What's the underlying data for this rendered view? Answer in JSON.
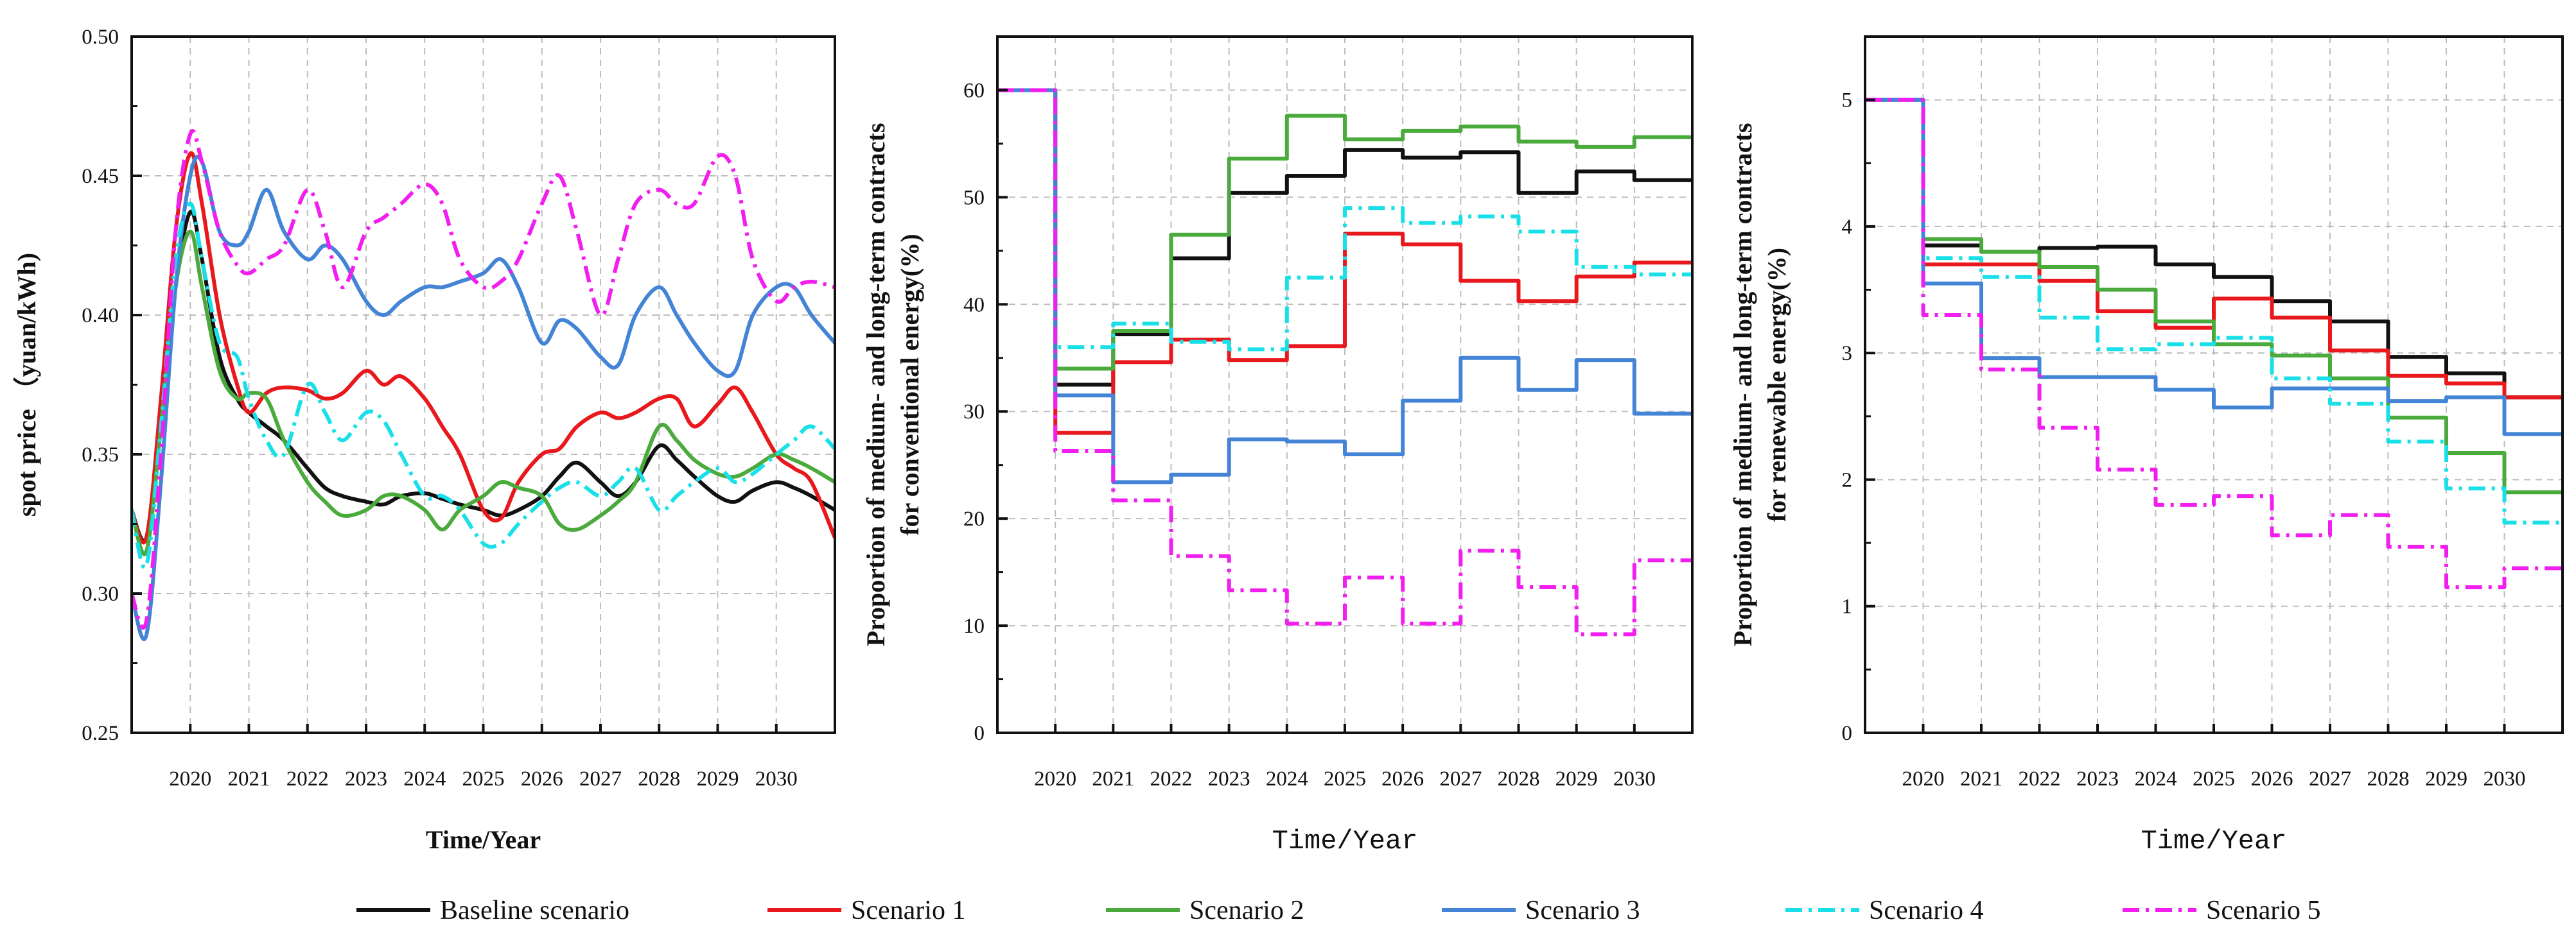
{
  "chart_data": [
    {
      "type": "line",
      "xlabel": "Time/Year",
      "ylabel": "spot price （yuan/kWh)",
      "xlim": [
        2019,
        2031
      ],
      "ylim": [
        0.25,
        0.5
      ],
      "xticks": [
        "2020",
        "2021",
        "2022",
        "2023",
        "2024",
        "2025",
        "2026",
        "2027",
        "2028",
        "2029",
        "2030"
      ],
      "yticks": [
        "0.25",
        "0.30",
        "0.35",
        "0.40",
        "0.45",
        "0.50"
      ],
      "grid": true,
      "series": [
        {
          "name": "Baseline scenario",
          "x": [
            2019.0,
            2019.25,
            2019.5,
            2019.75,
            2020.0,
            2020.2,
            2020.5,
            2020.8,
            2021.0,
            2021.3,
            2021.6,
            2022.0,
            2022.3,
            2022.6,
            2023.0,
            2023.3,
            2023.6,
            2024.0,
            2024.3,
            2024.6,
            2025.0,
            2025.3,
            2025.6,
            2026.0,
            2026.3,
            2026.6,
            2027.0,
            2027.3,
            2027.6,
            2028.0,
            2028.3,
            2028.6,
            2029.0,
            2029.3,
            2029.6,
            2030.0,
            2030.3,
            2030.6,
            2031.0
          ],
          "y": [
            0.33,
            0.32,
            0.36,
            0.41,
            0.437,
            0.42,
            0.385,
            0.37,
            0.365,
            0.36,
            0.355,
            0.345,
            0.338,
            0.335,
            0.333,
            0.332,
            0.335,
            0.336,
            0.334,
            0.332,
            0.33,
            0.328,
            0.33,
            0.335,
            0.342,
            0.347,
            0.34,
            0.335,
            0.34,
            0.353,
            0.348,
            0.342,
            0.335,
            0.333,
            0.337,
            0.34,
            0.338,
            0.335,
            0.33
          ]
        },
        {
          "name": "Scenario 1",
          "x": [
            2019.0,
            2019.25,
            2019.5,
            2019.75,
            2020.0,
            2020.2,
            2020.5,
            2020.8,
            2021.0,
            2021.3,
            2021.6,
            2022.0,
            2022.3,
            2022.6,
            2023.0,
            2023.3,
            2023.6,
            2024.0,
            2024.3,
            2024.6,
            2025.0,
            2025.3,
            2025.6,
            2026.0,
            2026.3,
            2026.6,
            2027.0,
            2027.3,
            2027.6,
            2028.0,
            2028.3,
            2028.6,
            2029.0,
            2029.3,
            2029.6,
            2030.0,
            2030.3,
            2030.6,
            2031.0
          ],
          "y": [
            0.33,
            0.32,
            0.37,
            0.43,
            0.458,
            0.44,
            0.4,
            0.375,
            0.365,
            0.372,
            0.374,
            0.373,
            0.37,
            0.372,
            0.38,
            0.375,
            0.378,
            0.37,
            0.36,
            0.35,
            0.33,
            0.327,
            0.34,
            0.35,
            0.352,
            0.36,
            0.365,
            0.363,
            0.365,
            0.37,
            0.37,
            0.36,
            0.368,
            0.374,
            0.365,
            0.35,
            0.345,
            0.34,
            0.32
          ]
        },
        {
          "name": "Scenario 2",
          "x": [
            2019.0,
            2019.25,
            2019.5,
            2019.75,
            2020.0,
            2020.2,
            2020.5,
            2020.8,
            2021.0,
            2021.3,
            2021.6,
            2022.0,
            2022.3,
            2022.6,
            2023.0,
            2023.3,
            2023.6,
            2024.0,
            2024.3,
            2024.6,
            2025.0,
            2025.3,
            2025.6,
            2026.0,
            2026.3,
            2026.6,
            2027.0,
            2027.3,
            2027.6,
            2028.0,
            2028.3,
            2028.6,
            2029.0,
            2029.3,
            2029.6,
            2030.0,
            2030.3,
            2030.6,
            2031.0
          ],
          "y": [
            0.33,
            0.315,
            0.36,
            0.41,
            0.43,
            0.41,
            0.38,
            0.37,
            0.372,
            0.37,
            0.355,
            0.34,
            0.333,
            0.328,
            0.33,
            0.335,
            0.335,
            0.33,
            0.323,
            0.33,
            0.335,
            0.34,
            0.338,
            0.335,
            0.325,
            0.323,
            0.328,
            0.333,
            0.34,
            0.36,
            0.355,
            0.348,
            0.343,
            0.342,
            0.345,
            0.35,
            0.348,
            0.345,
            0.34
          ]
        },
        {
          "name": "Scenario 3",
          "x": [
            2019.0,
            2019.25,
            2019.5,
            2019.75,
            2020.0,
            2020.2,
            2020.5,
            2020.8,
            2021.0,
            2021.3,
            2021.6,
            2022.0,
            2022.3,
            2022.6,
            2023.0,
            2023.3,
            2023.6,
            2024.0,
            2024.3,
            2024.6,
            2025.0,
            2025.3,
            2025.6,
            2026.0,
            2026.3,
            2026.6,
            2027.0,
            2027.3,
            2027.6,
            2028.0,
            2028.3,
            2028.6,
            2029.0,
            2029.3,
            2029.6,
            2030.0,
            2030.3,
            2030.6,
            2031.0
          ],
          "y": [
            0.3,
            0.285,
            0.34,
            0.41,
            0.45,
            0.455,
            0.43,
            0.425,
            0.43,
            0.445,
            0.43,
            0.42,
            0.425,
            0.42,
            0.405,
            0.4,
            0.405,
            0.41,
            0.41,
            0.412,
            0.415,
            0.42,
            0.41,
            0.39,
            0.398,
            0.395,
            0.385,
            0.382,
            0.4,
            0.41,
            0.4,
            0.39,
            0.38,
            0.38,
            0.4,
            0.41,
            0.41,
            0.4,
            0.39
          ]
        },
        {
          "name": "Scenario 4",
          "x": [
            2019.0,
            2019.25,
            2019.5,
            2019.75,
            2020.0,
            2020.2,
            2020.5,
            2020.8,
            2021.0,
            2021.3,
            2021.6,
            2022.0,
            2022.3,
            2022.6,
            2023.0,
            2023.3,
            2023.6,
            2024.0,
            2024.3,
            2024.6,
            2025.0,
            2025.3,
            2025.6,
            2026.0,
            2026.3,
            2026.6,
            2027.0,
            2027.3,
            2027.6,
            2028.0,
            2028.3,
            2028.6,
            2029.0,
            2029.3,
            2029.6,
            2030.0,
            2030.3,
            2030.6,
            2031.0
          ],
          "y": [
            0.33,
            0.31,
            0.36,
            0.42,
            0.44,
            0.42,
            0.39,
            0.385,
            0.37,
            0.355,
            0.35,
            0.375,
            0.365,
            0.355,
            0.365,
            0.362,
            0.35,
            0.335,
            0.335,
            0.33,
            0.318,
            0.318,
            0.325,
            0.333,
            0.338,
            0.34,
            0.335,
            0.34,
            0.345,
            0.33,
            0.335,
            0.34,
            0.345,
            0.34,
            0.343,
            0.35,
            0.355,
            0.36,
            0.352
          ]
        },
        {
          "name": "Scenario 5",
          "x": [
            2019.0,
            2019.25,
            2019.5,
            2019.75,
            2020.0,
            2020.2,
            2020.5,
            2020.8,
            2021.0,
            2021.3,
            2021.6,
            2022.0,
            2022.3,
            2022.6,
            2023.0,
            2023.3,
            2023.6,
            2024.0,
            2024.3,
            2024.6,
            2025.0,
            2025.3,
            2025.6,
            2026.0,
            2026.3,
            2026.6,
            2027.0,
            2027.3,
            2027.6,
            2028.0,
            2028.3,
            2028.6,
            2029.0,
            2029.3,
            2029.6,
            2030.0,
            2030.3,
            2030.6,
            2031.0
          ],
          "y": [
            0.3,
            0.29,
            0.35,
            0.43,
            0.465,
            0.455,
            0.43,
            0.418,
            0.415,
            0.42,
            0.425,
            0.445,
            0.43,
            0.41,
            0.43,
            0.435,
            0.44,
            0.447,
            0.44,
            0.42,
            0.41,
            0.412,
            0.42,
            0.44,
            0.45,
            0.43,
            0.4,
            0.42,
            0.44,
            0.445,
            0.44,
            0.44,
            0.457,
            0.45,
            0.42,
            0.405,
            0.41,
            0.412,
            0.41
          ]
        }
      ]
    },
    {
      "type": "line",
      "step": true,
      "xlabel": "Time/Year",
      "ylabel": [
        "Proportion of medium- and long-term contracts",
        "for conventional energy(%)"
      ],
      "xlim": [
        2019,
        2031
      ],
      "ylim": [
        0,
        65
      ],
      "xticks": [
        "2020",
        "2021",
        "2022",
        "2023",
        "2024",
        "2025",
        "2026",
        "2027",
        "2028",
        "2029",
        "2030"
      ],
      "yticks": [
        "0",
        "10",
        "20",
        "30",
        "40",
        "50",
        "60"
      ],
      "grid": true,
      "series": [
        {
          "name": "Baseline scenario",
          "y": [
            60,
            32.5,
            37.2,
            44.3,
            50.4,
            52,
            54.4,
            53.7,
            54.2,
            50.4,
            52.4,
            51.6
          ]
        },
        {
          "name": "Scenario 1",
          "y": [
            60,
            28,
            34.6,
            36.7,
            34.8,
            36.1,
            46.6,
            45.6,
            42.2,
            40.3,
            42.6,
            43.9
          ]
        },
        {
          "name": "Scenario 2",
          "y": [
            60,
            34,
            37.5,
            46.5,
            53.6,
            57.6,
            55.4,
            56.2,
            56.6,
            55.2,
            54.7,
            55.6
          ]
        },
        {
          "name": "Scenario 3",
          "y": [
            60,
            31.5,
            23.4,
            24.1,
            27.4,
            27.2,
            26,
            31,
            35,
            32,
            34.8,
            29.8
          ]
        },
        {
          "name": "Scenario 4",
          "y": [
            60,
            36,
            38.2,
            36.5,
            35.8,
            42.5,
            49,
            47.6,
            48.2,
            46.8,
            43.5,
            42.8
          ]
        },
        {
          "name": "Scenario 5",
          "y": [
            60,
            26.3,
            21.7,
            16.5,
            13.3,
            10.2,
            14.5,
            10.2,
            17,
            13.6,
            9.2,
            16.1
          ]
        }
      ]
    },
    {
      "type": "line",
      "step": true,
      "xlabel": "Time/Year",
      "ylabel": [
        "Proportion of medium- and long-term contracts",
        "for renewable energy(%)"
      ],
      "xlim": [
        2019,
        2031
      ],
      "ylim": [
        0,
        5.5
      ],
      "xticks": [
        "2020",
        "2021",
        "2022",
        "2023",
        "2024",
        "2025",
        "2026",
        "2027",
        "2028",
        "2029",
        "2030"
      ],
      "yticks": [
        "0",
        "1",
        "2",
        "3",
        "4",
        "5"
      ],
      "grid": true,
      "series": [
        {
          "name": "Baseline scenario",
          "y": [
            5,
            3.85,
            3.8,
            3.83,
            3.84,
            3.7,
            3.6,
            3.41,
            3.25,
            2.97,
            2.84,
            2.65
          ]
        },
        {
          "name": "Scenario 1",
          "y": [
            5,
            3.7,
            3.7,
            3.57,
            3.33,
            3.2,
            3.43,
            3.28,
            3.02,
            2.82,
            2.76,
            2.65
          ]
        },
        {
          "name": "Scenario 2",
          "y": [
            5,
            3.9,
            3.8,
            3.68,
            3.5,
            3.25,
            3.07,
            2.98,
            2.8,
            2.49,
            2.21,
            1.9
          ]
        },
        {
          "name": "Scenario 3",
          "y": [
            5,
            3.55,
            2.96,
            2.81,
            2.81,
            2.71,
            2.57,
            2.72,
            2.72,
            2.62,
            2.65,
            2.36
          ]
        },
        {
          "name": "Scenario 4",
          "y": [
            5,
            3.75,
            3.6,
            3.28,
            3.03,
            3.07,
            3.12,
            2.8,
            2.6,
            2.3,
            1.93,
            1.66
          ]
        },
        {
          "name": "Scenario 5",
          "y": [
            5,
            3.3,
            2.87,
            2.41,
            2.08,
            1.8,
            1.87,
            1.56,
            1.72,
            1.47,
            1.15,
            1.3
          ]
        }
      ]
    }
  ],
  "legend": {
    "placement": "bottom",
    "entries": [
      {
        "label": "Baseline scenario",
        "color": "#111111",
        "dash": "solid"
      },
      {
        "label": "Scenario 1",
        "color": "#e8181c",
        "dash": "solid"
      },
      {
        "label": "Scenario 2",
        "color": "#4aaa3c",
        "dash": "solid"
      },
      {
        "label": "Scenario 3",
        "color": "#4484d6",
        "dash": "solid"
      },
      {
        "label": "Scenario 4",
        "color": "#19e0e8",
        "dash": "dashdot"
      },
      {
        "label": "Scenario 5",
        "color": "#f21ef0",
        "dash": "dashdot"
      }
    ]
  }
}
